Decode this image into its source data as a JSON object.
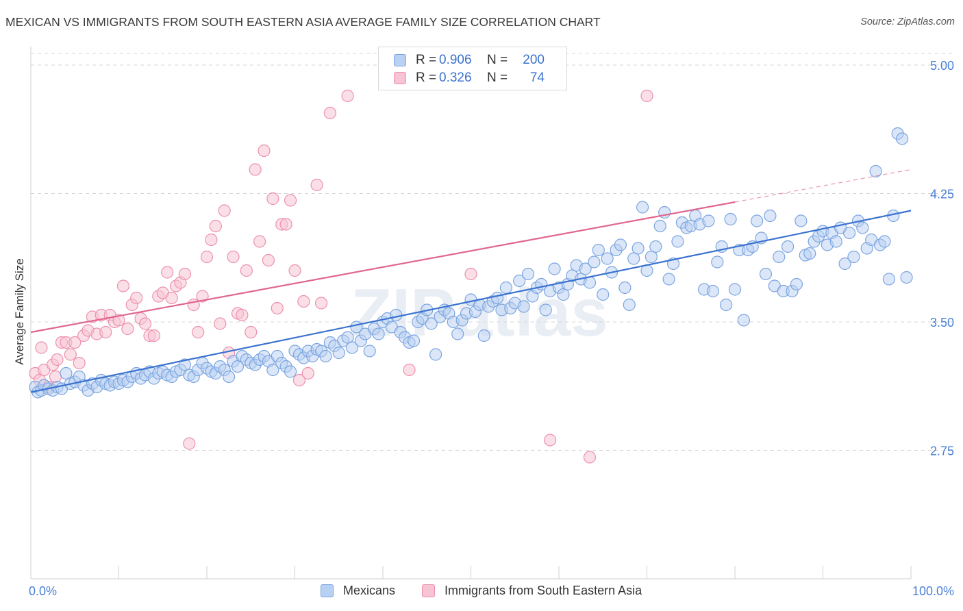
{
  "title": "MEXICAN VS IMMIGRANTS FROM SOUTH EASTERN ASIA AVERAGE FAMILY SIZE CORRELATION CHART",
  "source": "Source: ZipAtlas.com",
  "watermark": "ZIPatlas",
  "colors": {
    "blue": "#3a72d0",
    "blue_fill": "#b8d0f2",
    "blue_stroke": "#7aa4e0",
    "pink": "#e0668f",
    "pink_fill": "#f7c4d3",
    "pink_stroke": "#ec8fae",
    "tick_label": "#4a7fd6",
    "grid": "#d6d6d6"
  },
  "legend": {
    "rows": [
      {
        "r_label": "R =",
        "r_value": "0.906",
        "n_label": "N =",
        "n_value": "200",
        "color": "blue"
      },
      {
        "r_label": "R =",
        "r_value": "0.326",
        "n_label": "N =",
        "n_value": "74",
        "color": "pink"
      }
    ]
  },
  "bottom_legend": [
    "Mexicans",
    "Immigrants from South Eastern Asia"
  ],
  "chart_data": {
    "type": "scatter",
    "title": "MEXICAN VS IMMIGRANTS FROM SOUTH EASTERN ASIA AVERAGE FAMILY SIZE CORRELATION CHART",
    "xlabel": "",
    "ylabel": "Average Family Size",
    "xlim": [
      0,
      100
    ],
    "ylim": [
      2.0,
      5.1
    ],
    "x_tick_labels": [
      "0.0%",
      "100.0%"
    ],
    "y_ticks": [
      2.75,
      3.5,
      4.25,
      5.0
    ],
    "y_tick_labels": [
      "2.75",
      "3.50",
      "4.25",
      "5.00"
    ],
    "grid": "horizontal dashed",
    "legend_position": "top-center",
    "series": [
      {
        "name": "Mexicans",
        "color": "blue",
        "trend": {
          "x0": 0,
          "y0": 3.09,
          "x1": 100,
          "y1": 4.15
        },
        "points": [
          [
            0.5,
            3.12
          ],
          [
            0.8,
            3.09
          ],
          [
            1.2,
            3.1
          ],
          [
            1.5,
            3.13
          ],
          [
            2.0,
            3.11
          ],
          [
            2.5,
            3.1
          ],
          [
            3.0,
            3.12
          ],
          [
            3.5,
            3.11
          ],
          [
            4.0,
            3.2
          ],
          [
            4.5,
            3.14
          ],
          [
            5.0,
            3.15
          ],
          [
            5.5,
            3.18
          ],
          [
            6.0,
            3.13
          ],
          [
            6.5,
            3.1
          ],
          [
            7.0,
            3.14
          ],
          [
            7.5,
            3.12
          ],
          [
            8.0,
            3.16
          ],
          [
            8.5,
            3.14
          ],
          [
            9.0,
            3.13
          ],
          [
            9.5,
            3.15
          ],
          [
            10.0,
            3.14
          ],
          [
            10.5,
            3.16
          ],
          [
            11.0,
            3.15
          ],
          [
            11.5,
            3.18
          ],
          [
            12.0,
            3.2
          ],
          [
            12.5,
            3.17
          ],
          [
            13.0,
            3.19
          ],
          [
            13.5,
            3.21
          ],
          [
            14.0,
            3.17
          ],
          [
            14.5,
            3.2
          ],
          [
            15.0,
            3.21
          ],
          [
            15.5,
            3.19
          ],
          [
            16.0,
            3.18
          ],
          [
            16.5,
            3.21
          ],
          [
            17.0,
            3.22
          ],
          [
            17.5,
            3.25
          ],
          [
            18.0,
            3.19
          ],
          [
            18.5,
            3.18
          ],
          [
            19.0,
            3.22
          ],
          [
            19.5,
            3.26
          ],
          [
            20.0,
            3.23
          ],
          [
            20.5,
            3.21
          ],
          [
            21.0,
            3.2
          ],
          [
            21.5,
            3.24
          ],
          [
            22.0,
            3.22
          ],
          [
            22.5,
            3.18
          ],
          [
            23.0,
            3.27
          ],
          [
            23.5,
            3.24
          ],
          [
            24.0,
            3.3
          ],
          [
            24.5,
            3.28
          ],
          [
            25.0,
            3.26
          ],
          [
            25.5,
            3.25
          ],
          [
            26.0,
            3.28
          ],
          [
            26.5,
            3.3
          ],
          [
            27.0,
            3.27
          ],
          [
            27.5,
            3.22
          ],
          [
            28.0,
            3.3
          ],
          [
            28.5,
            3.26
          ],
          [
            29.0,
            3.24
          ],
          [
            29.5,
            3.21
          ],
          [
            30.0,
            3.33
          ],
          [
            30.5,
            3.31
          ],
          [
            31.0,
            3.29
          ],
          [
            31.5,
            3.33
          ],
          [
            32.0,
            3.3
          ],
          [
            32.5,
            3.34
          ],
          [
            33.0,
            3.33
          ],
          [
            33.5,
            3.3
          ],
          [
            34.0,
            3.38
          ],
          [
            34.5,
            3.36
          ],
          [
            35.0,
            3.32
          ],
          [
            35.5,
            3.39
          ],
          [
            36.0,
            3.41
          ],
          [
            36.5,
            3.35
          ],
          [
            37.0,
            3.47
          ],
          [
            37.5,
            3.39
          ],
          [
            38.0,
            3.43
          ],
          [
            38.5,
            3.33
          ],
          [
            39.0,
            3.46
          ],
          [
            39.5,
            3.43
          ],
          [
            40.0,
            3.5
          ],
          [
            40.5,
            3.52
          ],
          [
            41.0,
            3.47
          ],
          [
            41.5,
            3.54
          ],
          [
            42.0,
            3.44
          ],
          [
            42.5,
            3.41
          ],
          [
            43.0,
            3.38
          ],
          [
            43.5,
            3.39
          ],
          [
            44.0,
            3.5
          ],
          [
            44.5,
            3.52
          ],
          [
            45.0,
            3.57
          ],
          [
            45.5,
            3.49
          ],
          [
            46.0,
            3.31
          ],
          [
            46.5,
            3.53
          ],
          [
            47.0,
            3.57
          ],
          [
            47.5,
            3.55
          ],
          [
            48.0,
            3.5
          ],
          [
            48.5,
            3.43
          ],
          [
            49.0,
            3.51
          ],
          [
            49.5,
            3.55
          ],
          [
            50.0,
            3.63
          ],
          [
            50.5,
            3.56
          ],
          [
            51.0,
            3.6
          ],
          [
            51.5,
            3.42
          ],
          [
            52.0,
            3.59
          ],
          [
            52.5,
            3.62
          ],
          [
            53.0,
            3.64
          ],
          [
            53.5,
            3.57
          ],
          [
            54.0,
            3.7
          ],
          [
            54.5,
            3.58
          ],
          [
            55.0,
            3.61
          ],
          [
            55.5,
            3.74
          ],
          [
            56.0,
            3.59
          ],
          [
            56.5,
            3.78
          ],
          [
            57.0,
            3.65
          ],
          [
            57.5,
            3.7
          ],
          [
            58.0,
            3.72
          ],
          [
            58.5,
            3.57
          ],
          [
            59.0,
            3.68
          ],
          [
            59.5,
            3.81
          ],
          [
            60.0,
            3.7
          ],
          [
            60.5,
            3.66
          ],
          [
            61.0,
            3.72
          ],
          [
            61.5,
            3.77
          ],
          [
            62.0,
            3.83
          ],
          [
            62.5,
            3.75
          ],
          [
            63.0,
            3.81
          ],
          [
            63.5,
            3.73
          ],
          [
            64.0,
            3.85
          ],
          [
            64.5,
            3.92
          ],
          [
            65.0,
            3.66
          ],
          [
            65.5,
            3.87
          ],
          [
            66.0,
            3.79
          ],
          [
            66.5,
            3.92
          ],
          [
            67.0,
            3.95
          ],
          [
            67.5,
            3.7
          ],
          [
            68.0,
            3.6
          ],
          [
            68.5,
            3.87
          ],
          [
            69.0,
            3.93
          ],
          [
            69.5,
            4.17
          ],
          [
            70.0,
            3.8
          ],
          [
            70.5,
            3.88
          ],
          [
            71.0,
            3.94
          ],
          [
            71.5,
            4.06
          ],
          [
            72.0,
            4.14
          ],
          [
            72.5,
            3.75
          ],
          [
            73.0,
            3.84
          ],
          [
            73.5,
            3.97
          ],
          [
            74.0,
            4.08
          ],
          [
            74.5,
            4.05
          ],
          [
            75.0,
            4.06
          ],
          [
            75.5,
            4.12
          ],
          [
            76.0,
            4.07
          ],
          [
            76.5,
            3.69
          ],
          [
            77.0,
            4.09
          ],
          [
            77.5,
            3.68
          ],
          [
            78.0,
            3.85
          ],
          [
            78.5,
            3.94
          ],
          [
            79.0,
            3.6
          ],
          [
            79.5,
            4.1
          ],
          [
            80.0,
            3.69
          ],
          [
            80.5,
            3.92
          ],
          [
            81.0,
            3.51
          ],
          [
            81.5,
            3.92
          ],
          [
            82.0,
            3.94
          ],
          [
            82.5,
            4.09
          ],
          [
            83.0,
            3.99
          ],
          [
            83.5,
            3.78
          ],
          [
            84.0,
            4.12
          ],
          [
            84.5,
            3.71
          ],
          [
            85.0,
            3.88
          ],
          [
            85.5,
            3.68
          ],
          [
            86.0,
            3.94
          ],
          [
            86.5,
            3.68
          ],
          [
            87.0,
            3.72
          ],
          [
            87.5,
            4.09
          ],
          [
            88.0,
            3.89
          ],
          [
            88.5,
            3.9
          ],
          [
            89.0,
            3.97
          ],
          [
            89.5,
            4.0
          ],
          [
            90.0,
            4.03
          ],
          [
            90.5,
            3.95
          ],
          [
            91.0,
            4.02
          ],
          [
            91.5,
            3.97
          ],
          [
            92.0,
            4.05
          ],
          [
            92.5,
            3.84
          ],
          [
            93.0,
            4.02
          ],
          [
            93.5,
            3.88
          ],
          [
            94.0,
            4.09
          ],
          [
            94.5,
            4.05
          ],
          [
            95.0,
            3.93
          ],
          [
            95.5,
            3.98
          ],
          [
            96.0,
            4.38
          ],
          [
            96.5,
            3.95
          ],
          [
            97.0,
            3.97
          ],
          [
            97.5,
            3.75
          ],
          [
            98.0,
            4.12
          ],
          [
            98.5,
            4.6
          ],
          [
            99.0,
            4.57
          ],
          [
            99.5,
            3.76
          ]
        ]
      },
      {
        "name": "Immigrants from South Eastern Asia",
        "color": "pink",
        "trend": {
          "x0": 0,
          "y0": 3.44,
          "x1": 80,
          "y1": 4.2
        },
        "trend_ext": {
          "x0": 80,
          "y0": 4.2,
          "x1": 100,
          "y1": 4.39
        },
        "points": [
          [
            0.5,
            3.2
          ],
          [
            1.0,
            3.16
          ],
          [
            1.5,
            3.22
          ],
          [
            2.0,
            3.12
          ],
          [
            2.5,
            3.25
          ],
          [
            3.0,
            3.28
          ],
          [
            3.5,
            3.38
          ],
          [
            4.0,
            3.38
          ],
          [
            4.5,
            3.31
          ],
          [
            5.0,
            3.38
          ],
          [
            5.5,
            3.26
          ],
          [
            6.0,
            3.42
          ],
          [
            6.5,
            3.45
          ],
          [
            7.0,
            3.53
          ],
          [
            7.5,
            3.43
          ],
          [
            8.0,
            3.54
          ],
          [
            8.5,
            3.44
          ],
          [
            9.0,
            3.54
          ],
          [
            9.5,
            3.5
          ],
          [
            10.0,
            3.51
          ],
          [
            10.5,
            3.71
          ],
          [
            11.0,
            3.46
          ],
          [
            11.5,
            3.6
          ],
          [
            12.0,
            3.64
          ],
          [
            12.5,
            3.52
          ],
          [
            13.0,
            3.49
          ],
          [
            13.5,
            3.42
          ],
          [
            14.0,
            3.42
          ],
          [
            14.5,
            3.65
          ],
          [
            15.0,
            3.67
          ],
          [
            15.5,
            3.79
          ],
          [
            16.0,
            3.64
          ],
          [
            16.5,
            3.71
          ],
          [
            17.0,
            3.73
          ],
          [
            17.5,
            3.78
          ],
          [
            18.0,
            2.79
          ],
          [
            18.5,
            3.6
          ],
          [
            19.0,
            3.44
          ],
          [
            19.5,
            3.65
          ],
          [
            20.0,
            3.88
          ],
          [
            20.5,
            3.98
          ],
          [
            21.0,
            4.06
          ],
          [
            21.5,
            3.49
          ],
          [
            22.0,
            4.15
          ],
          [
            22.5,
            3.32
          ],
          [
            23.0,
            3.88
          ],
          [
            23.5,
            3.55
          ],
          [
            24.0,
            3.54
          ],
          [
            24.5,
            3.8
          ],
          [
            25.0,
            3.44
          ],
          [
            25.5,
            4.39
          ],
          [
            26.0,
            3.97
          ],
          [
            26.5,
            4.5
          ],
          [
            27.0,
            3.86
          ],
          [
            27.5,
            4.22
          ],
          [
            28.0,
            3.58
          ],
          [
            28.5,
            4.07
          ],
          [
            29.0,
            4.07
          ],
          [
            29.5,
            4.21
          ],
          [
            30.0,
            3.8
          ],
          [
            30.5,
            3.16
          ],
          [
            31.0,
            3.62
          ],
          [
            31.5,
            3.2
          ],
          [
            32.5,
            4.3
          ],
          [
            33.0,
            3.61
          ],
          [
            34.0,
            4.72
          ],
          [
            36.0,
            4.82
          ],
          [
            43.0,
            3.22
          ],
          [
            50.0,
            3.78
          ],
          [
            59.0,
            2.81
          ],
          [
            63.5,
            2.71
          ],
          [
            70.0,
            4.82
          ],
          [
            1.2,
            3.35
          ],
          [
            2.8,
            3.18
          ]
        ]
      }
    ]
  }
}
